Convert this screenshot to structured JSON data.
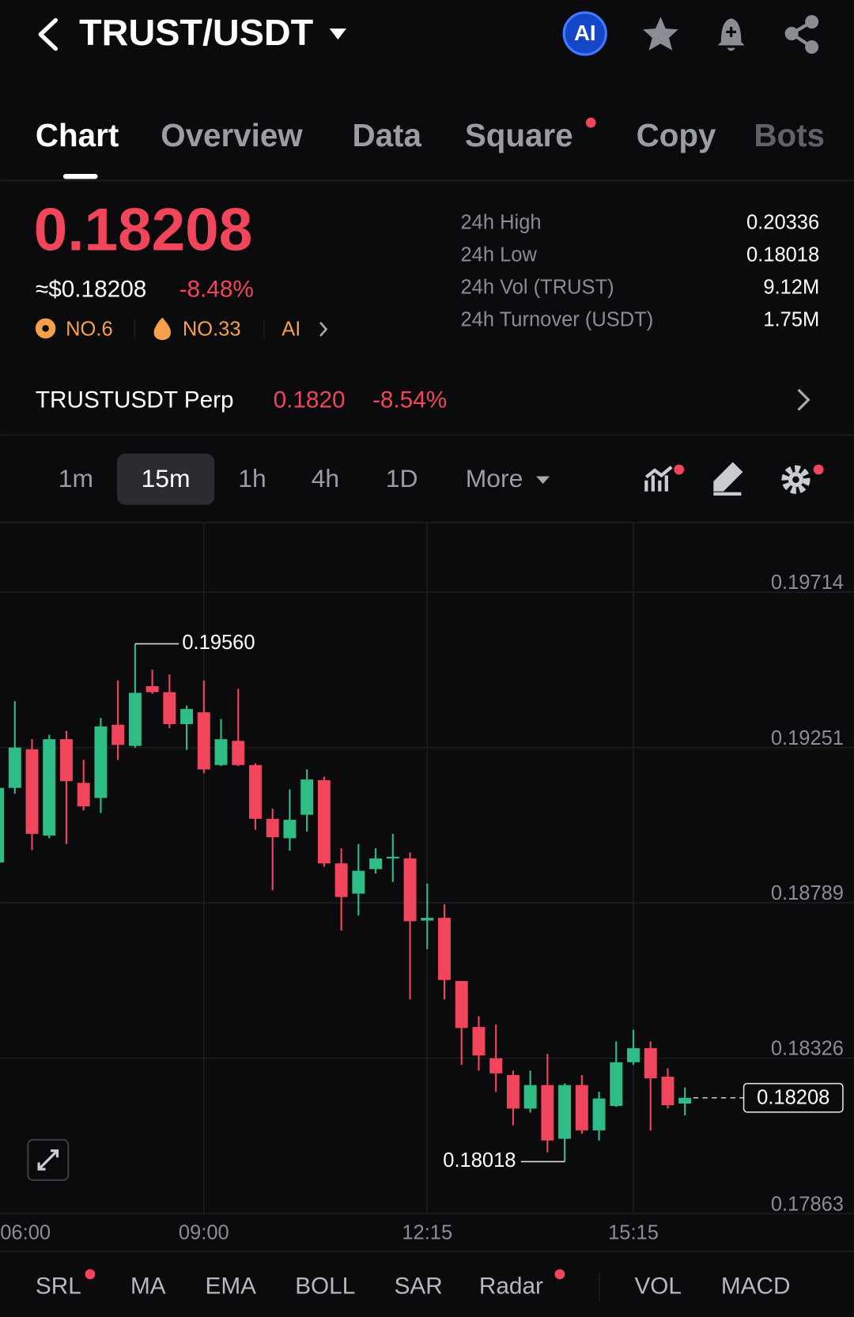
{
  "header": {
    "title": "TRUST/USDT",
    "ai_badge": "AI"
  },
  "tabs": [
    {
      "label": "Chart",
      "selected": true
    },
    {
      "label": "Overview"
    },
    {
      "label": "Data"
    },
    {
      "label": "Square"
    },
    {
      "label": "Copy"
    },
    {
      "label": "Bots"
    }
  ],
  "ticker": {
    "price": "0.18208",
    "usd_price": "≈$0.18208",
    "change": "-8.48%",
    "badges": [
      "NO.6",
      "NO.33",
      "AI"
    ],
    "stats": [
      {
        "label": "24h High",
        "value": "0.20336"
      },
      {
        "label": "24h Low",
        "value": "0.18018"
      },
      {
        "label": "24h Vol (TRUST)",
        "value": "9.12M"
      },
      {
        "label": "24h Turnover (USDT)",
        "value": "1.75M"
      }
    ]
  },
  "perp": {
    "name": "TRUSTUSDT Perp",
    "price": "0.1820",
    "change": "-8.54%"
  },
  "intervals": [
    {
      "label": "1m"
    },
    {
      "label": "15m",
      "selected": true
    },
    {
      "label": "1h"
    },
    {
      "label": "4h"
    },
    {
      "label": "1D"
    },
    {
      "label": "More"
    }
  ],
  "indicators": [
    "SRL",
    "MA",
    "EMA",
    "BOLL",
    "SAR",
    "Radar",
    "VOL",
    "MACD"
  ],
  "chart_data": {
    "type": "candlestick",
    "categories": [
      "06:00",
      null,
      null,
      null,
      null,
      null,
      null,
      null,
      null,
      null,
      null,
      null,
      "09:00",
      null,
      null,
      null,
      null,
      null,
      null,
      null,
      null,
      null,
      null,
      null,
      null,
      "12:15",
      null,
      null,
      null,
      null,
      null,
      null,
      null,
      null,
      null,
      null,
      null,
      "15:15",
      null,
      null,
      null
    ],
    "open": [
      0.18909,
      0.19131,
      0.19246,
      0.18989,
      0.19276,
      0.19146,
      0.19101,
      0.19319,
      0.19256,
      0.19434,
      0.19416,
      0.19321,
      0.19356,
      0.19199,
      0.19271,
      0.19199,
      0.19039,
      0.18981,
      0.19051,
      0.19154,
      0.18906,
      0.18816,
      0.18889,
      0.18921,
      0.18921,
      0.18736,
      0.18744,
      0.18556,
      0.18419,
      0.18326,
      0.18276,
      0.18176,
      0.18246,
      0.18086,
      0.18246,
      0.18111,
      0.18184,
      0.18314,
      0.18356,
      0.18271,
      0.18191
    ],
    "high": [
      0.19176,
      0.19389,
      0.19276,
      0.19289,
      0.19301,
      0.19214,
      0.19339,
      0.19451,
      0.1956,
      0.19483,
      0.19469,
      0.19376,
      0.19451,
      0.19336,
      0.19426,
      0.19204,
      0.19069,
      0.19126,
      0.19186,
      0.19164,
      0.18951,
      0.18964,
      0.18951,
      0.18994,
      0.18939,
      0.18846,
      0.18784,
      0.18556,
      0.18451,
      0.18426,
      0.18289,
      0.18289,
      0.18339,
      0.18251,
      0.18276,
      0.18226,
      0.18376,
      0.18411,
      0.18376,
      0.18296,
      0.18239
    ],
    "low": [
      0.18901,
      0.19114,
      0.18946,
      0.18981,
      0.18964,
      0.19064,
      0.19056,
      0.19214,
      0.19251,
      0.19411,
      0.19309,
      0.19244,
      0.19174,
      0.19196,
      0.19196,
      0.19006,
      0.18826,
      0.18944,
      0.19001,
      0.18896,
      0.18706,
      0.18751,
      0.18876,
      0.18851,
      0.18501,
      0.18651,
      0.18501,
      0.18306,
      0.18289,
      0.18226,
      0.18126,
      0.18164,
      0.18046,
      0.18018,
      0.18101,
      0.18081,
      0.18181,
      0.18306,
      0.18111,
      0.18176,
      0.18156
    ],
    "close": [
      0.19131,
      0.19251,
      0.18994,
      0.19276,
      0.19151,
      0.19076,
      0.19314,
      0.19259,
      0.19414,
      0.19416,
      0.19321,
      0.19366,
      0.19186,
      0.19276,
      0.19199,
      0.19039,
      0.18984,
      0.19036,
      0.19156,
      0.18906,
      0.18806,
      0.18884,
      0.18921,
      0.18926,
      0.18734,
      0.18744,
      0.18559,
      0.18416,
      0.18334,
      0.18281,
      0.18176,
      0.18246,
      0.18081,
      0.18246,
      0.18111,
      0.18206,
      0.18314,
      0.18356,
      0.18266,
      0.18186,
      0.18208
    ],
    "up_color": "#2ebd85",
    "down_color": "#f0455a",
    "ylim": [
      0.17863,
      0.19919
    ],
    "yticks": [
      0.19714,
      0.19251,
      0.18789,
      0.18326,
      0.17863
    ],
    "grid": true,
    "max_label": "0.19560",
    "min_label": "0.18018",
    "last_price_label": "0.18208"
  }
}
